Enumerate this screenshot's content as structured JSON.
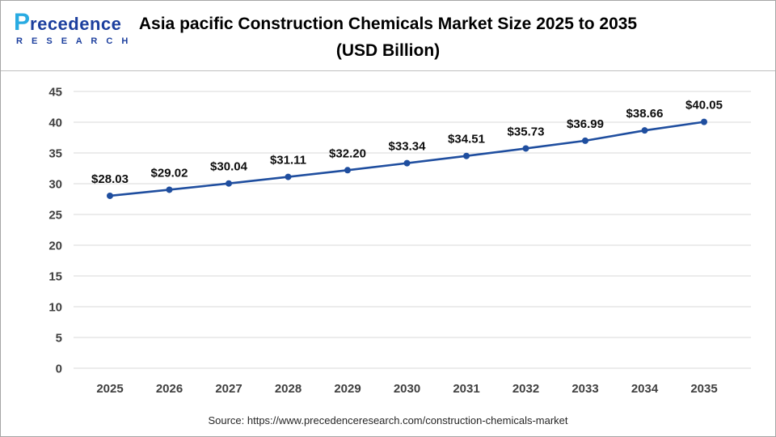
{
  "header": {
    "logo": {
      "brand_p": "P",
      "brand_rest": "recedence",
      "sub": "R E S E A R C H"
    },
    "title_line1": "Asia pacific Construction Chemicals Market Size 2025 to 2035",
    "title_line2": "(USD Billion)"
  },
  "footer": {
    "source": "Source: https://www.precedenceresearch.com/construction-chemicals-market"
  },
  "chart_data": {
    "type": "line",
    "title": "Asia pacific Construction Chemicals Market Size 2025 to 2035 (USD Billion)",
    "categories": [
      "2025",
      "2026",
      "2027",
      "2028",
      "2029",
      "2030",
      "2031",
      "2032",
      "2033",
      "2034",
      "2035"
    ],
    "values": [
      28.03,
      29.02,
      30.04,
      31.11,
      32.2,
      33.34,
      34.51,
      35.73,
      36.99,
      38.66,
      40.05
    ],
    "labels": [
      "$28.03",
      "$29.02",
      "$30.04",
      "$31.11",
      "$32.20",
      "$33.34",
      "$34.51",
      "$35.73",
      "$36.99",
      "$38.66",
      "$40.05"
    ],
    "xlabel": "",
    "ylabel": "",
    "ylim": [
      0,
      45
    ],
    "ytick_step": 5,
    "yticks": [
      0,
      5,
      10,
      15,
      20,
      25,
      30,
      35,
      40,
      45
    ],
    "grid": true,
    "legend": "none",
    "line_color": "#1f4e9f",
    "grid_color": "#d9d9d9",
    "label_color": "#0d0d0d",
    "tick_color": "#3f3f3f"
  }
}
